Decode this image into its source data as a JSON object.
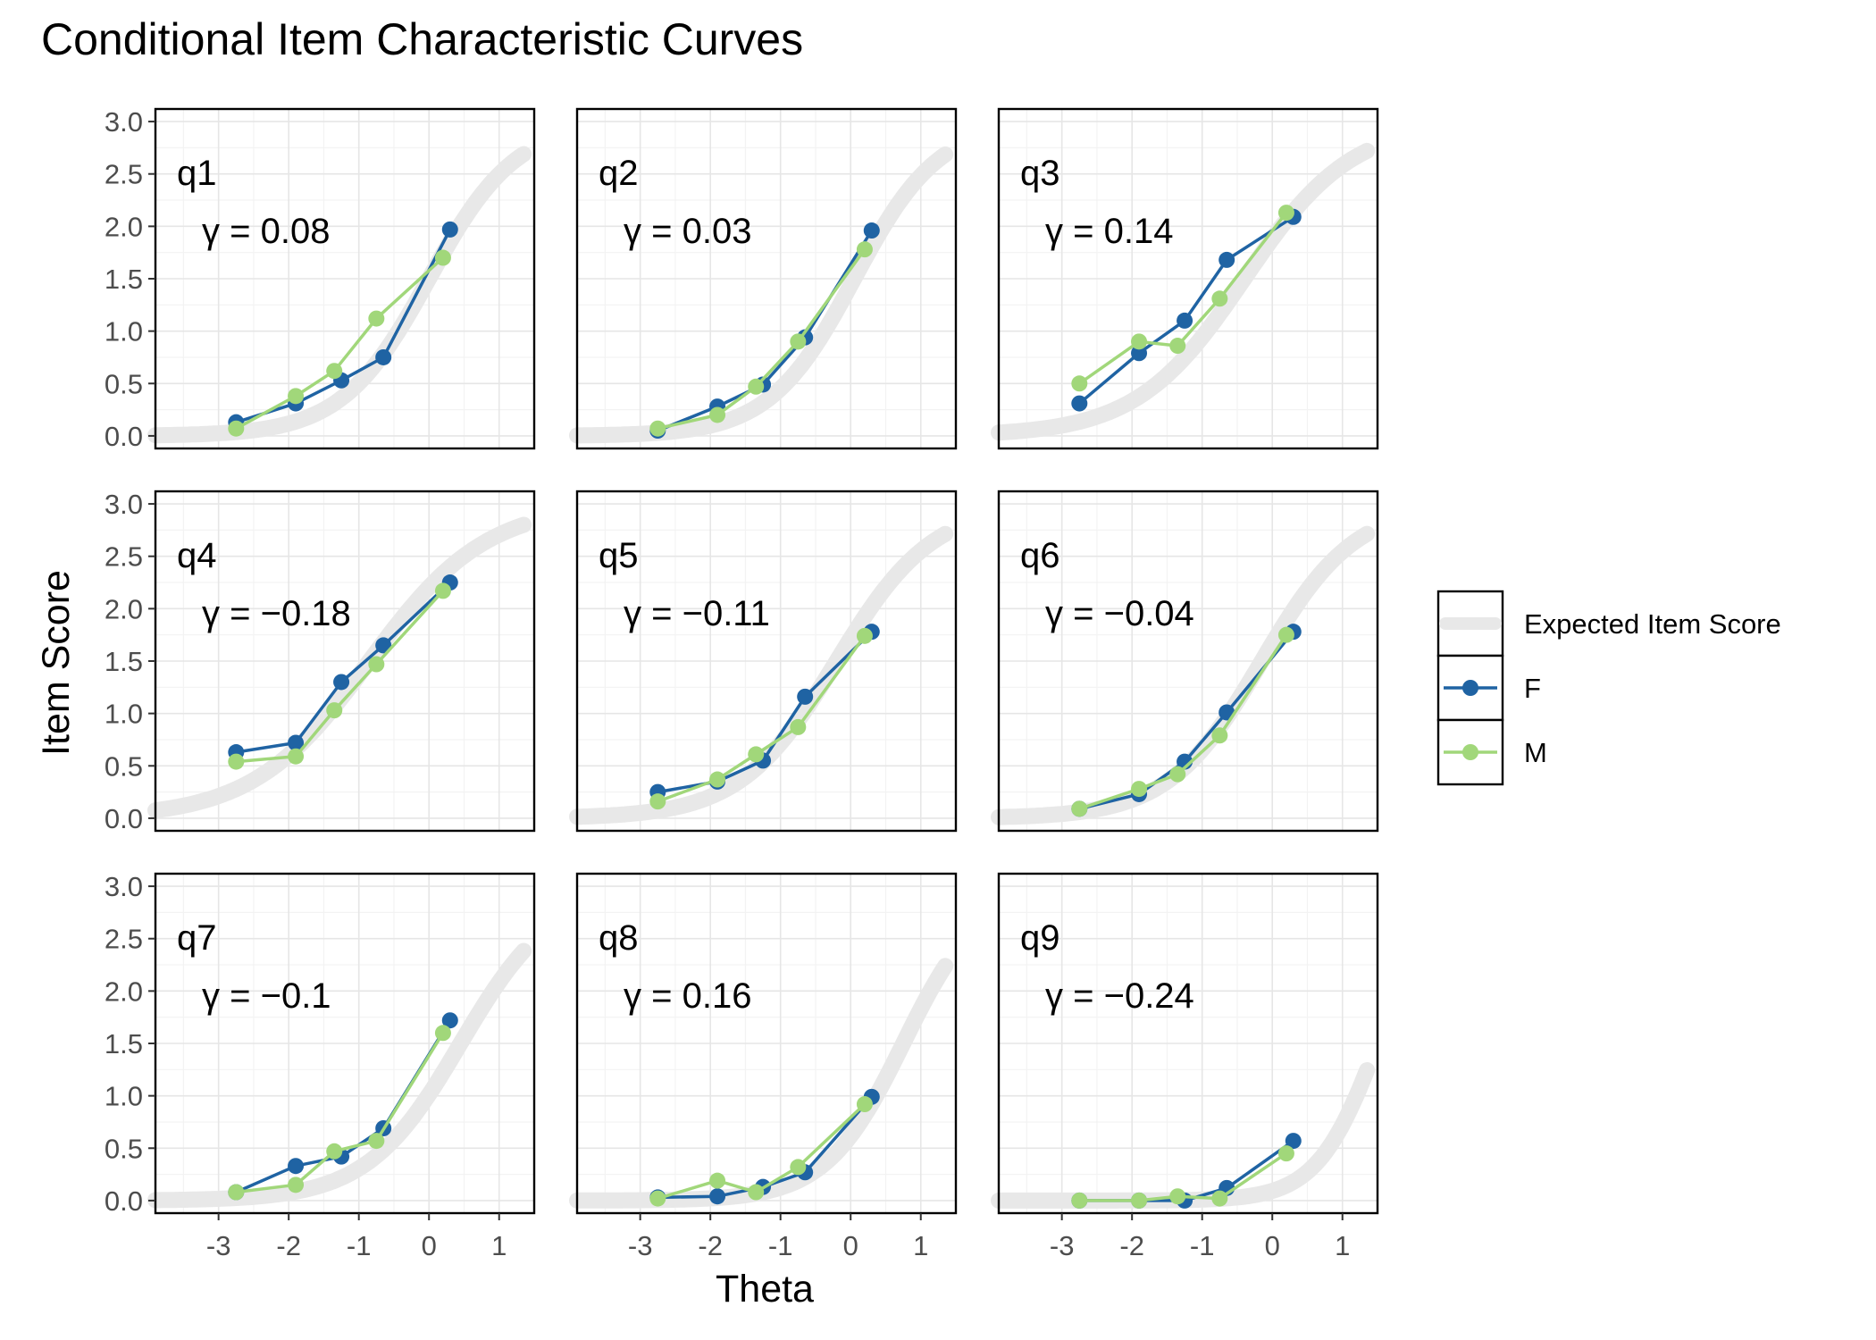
{
  "chart_data": {
    "type": "line",
    "title": "Conditional Item Characteristic Curves",
    "xlabel": "Theta",
    "ylabel": "Item Score",
    "xlim": [
      -3.9,
      1.5
    ],
    "ylim": [
      -0.12,
      3.12
    ],
    "xticks": [
      -3,
      -2,
      -1,
      0,
      1
    ],
    "yticks": [
      0,
      0.5,
      1,
      1.5,
      2,
      2.5,
      3
    ],
    "xtick_labels": [
      "-3",
      "-2",
      "-1",
      "0",
      "1"
    ],
    "ytick_labels": [
      "0.0",
      "0.5",
      "1.0",
      "1.5",
      "2.0",
      "2.5",
      "3.0"
    ],
    "grid": true,
    "legend": {
      "position": "right",
      "entries": [
        {
          "name": "Expected Item Score",
          "color": "#e8e8e8"
        },
        {
          "name": "F",
          "color": "#1f63a3"
        },
        {
          "name": "M",
          "color": "#a1d77a"
        }
      ]
    },
    "panels": [
      {
        "label": "q1",
        "gamma": "γ = 0.08",
        "expected": {
          "lower": 0.0,
          "upper": 3.0,
          "mid": 0.0,
          "slope": 1.6,
          "from": -3.9,
          "to": 1.35
        },
        "series": [
          {
            "name": "F",
            "x": [
              -2.75,
              -1.9,
              -1.25,
              -0.65,
              0.3
            ],
            "y": [
              0.13,
              0.31,
              0.53,
              0.75,
              1.97
            ]
          },
          {
            "name": "M",
            "x": [
              -2.75,
              -1.9,
              -1.35,
              -0.75,
              0.2
            ],
            "y": [
              0.07,
              0.38,
              0.62,
              1.12,
              1.7
            ]
          }
        ]
      },
      {
        "label": "q2",
        "gamma": "γ = 0.03",
        "expected": {
          "lower": 0.0,
          "upper": 3.0,
          "mid": 0.05,
          "slope": 1.65,
          "from": -3.9,
          "to": 1.35
        },
        "series": [
          {
            "name": "F",
            "x": [
              -2.75,
              -1.9,
              -1.25,
              -0.65,
              0.3
            ],
            "y": [
              0.05,
              0.28,
              0.49,
              0.94,
              1.96
            ]
          },
          {
            "name": "M",
            "x": [
              -2.75,
              -1.9,
              -1.35,
              -0.75,
              0.2
            ],
            "y": [
              0.07,
              0.2,
              0.47,
              0.9,
              1.78
            ]
          }
        ]
      },
      {
        "label": "q3",
        "gamma": "γ = 0.14",
        "expected": {
          "lower": 0.0,
          "upper": 3.0,
          "mid": -0.4,
          "slope": 1.3,
          "from": -3.9,
          "to": 1.35
        },
        "series": [
          {
            "name": "F",
            "x": [
              -2.75,
              -1.9,
              -1.25,
              -0.65,
              0.3
            ],
            "y": [
              0.31,
              0.79,
              1.1,
              1.68,
              2.09
            ]
          },
          {
            "name": "M",
            "x": [
              -2.75,
              -1.9,
              -1.35,
              -0.75,
              0.2
            ],
            "y": [
              0.5,
              0.9,
              0.86,
              1.31,
              2.13
            ]
          }
        ]
      },
      {
        "label": "q4",
        "gamma": "γ = −0.18",
        "expected": {
          "lower": 0.0,
          "upper": 3.0,
          "mid": -0.85,
          "slope": 1.2,
          "from": -3.9,
          "to": 1.35
        },
        "series": [
          {
            "name": "F",
            "x": [
              -2.75,
              -1.9,
              -1.25,
              -0.65,
              0.3
            ],
            "y": [
              0.63,
              0.72,
              1.3,
              1.65,
              2.25
            ]
          },
          {
            "name": "M",
            "x": [
              -2.75,
              -1.9,
              -1.35,
              -0.75,
              0.2
            ],
            "y": [
              0.54,
              0.59,
              1.03,
              1.47,
              2.17
            ]
          }
        ]
      },
      {
        "label": "q5",
        "gamma": "γ = −0.11",
        "expected": {
          "lower": 0.0,
          "upper": 3.0,
          "mid": -0.2,
          "slope": 1.45,
          "from": -3.9,
          "to": 1.35
        },
        "series": [
          {
            "name": "F",
            "x": [
              -2.75,
              -1.9,
              -1.25,
              -0.65,
              0.3
            ],
            "y": [
              0.25,
              0.35,
              0.55,
              1.16,
              1.78
            ]
          },
          {
            "name": "M",
            "x": [
              -2.75,
              -1.9,
              -1.35,
              -0.75,
              0.2
            ],
            "y": [
              0.16,
              0.37,
              0.61,
              0.87,
              1.74
            ]
          }
        ]
      },
      {
        "label": "q6",
        "gamma": "γ = −0.04",
        "expected": {
          "lower": 0.0,
          "upper": 3.0,
          "mid": -0.15,
          "slope": 1.5,
          "from": -3.9,
          "to": 1.35
        },
        "series": [
          {
            "name": "F",
            "x": [
              -2.75,
              -1.9,
              -1.25,
              -0.65,
              0.3
            ],
            "y": [
              0.09,
              0.23,
              0.54,
              1.01,
              1.78
            ]
          },
          {
            "name": "M",
            "x": [
              -2.75,
              -1.9,
              -1.35,
              -0.75,
              0.2
            ],
            "y": [
              0.09,
              0.28,
              0.42,
              0.79,
              1.75
            ]
          }
        ]
      },
      {
        "label": "q7",
        "gamma": "γ = −0.1",
        "expected": {
          "lower": 0.0,
          "upper": 3.0,
          "mid": 0.45,
          "slope": 1.5,
          "from": -3.9,
          "to": 1.35
        },
        "series": [
          {
            "name": "F",
            "x": [
              -2.75,
              -1.9,
              -1.25,
              -0.65,
              0.3
            ],
            "y": [
              0.08,
              0.33,
              0.42,
              0.69,
              1.72
            ]
          },
          {
            "name": "M",
            "x": [
              -2.75,
              -1.9,
              -1.35,
              -0.75,
              0.2
            ],
            "y": [
              0.08,
              0.15,
              0.47,
              0.57,
              1.6
            ]
          }
        ]
      },
      {
        "label": "q8",
        "gamma": "γ = 0.16",
        "expected": {
          "lower": 0.0,
          "upper": 3.0,
          "mid": 0.75,
          "slope": 1.8,
          "from": -3.9,
          "to": 1.35
        },
        "series": [
          {
            "name": "F",
            "x": [
              -2.75,
              -1.9,
              -1.25,
              -0.65,
              0.3
            ],
            "y": [
              0.03,
              0.04,
              0.13,
              0.27,
              0.99
            ]
          },
          {
            "name": "M",
            "x": [
              -2.75,
              -1.9,
              -1.35,
              -0.75,
              0.2
            ],
            "y": [
              0.02,
              0.19,
              0.08,
              0.32,
              0.92
            ]
          }
        ]
      },
      {
        "label": "q9",
        "gamma": "γ = −0.24",
        "expected": {
          "lower": 0.0,
          "upper": 3.0,
          "mid": 1.5,
          "slope": 2.3,
          "from": -3.9,
          "to": 1.35
        },
        "series": [
          {
            "name": "F",
            "x": [
              -2.75,
              -1.9,
              -1.25,
              -0.65,
              0.3
            ],
            "y": [
              0.0,
              0.0,
              0.0,
              0.12,
              0.57
            ]
          },
          {
            "name": "M",
            "x": [
              -2.75,
              -1.9,
              -1.35,
              -0.75,
              0.2
            ],
            "y": [
              0.0,
              0.0,
              0.04,
              0.02,
              0.45
            ]
          }
        ]
      }
    ]
  }
}
